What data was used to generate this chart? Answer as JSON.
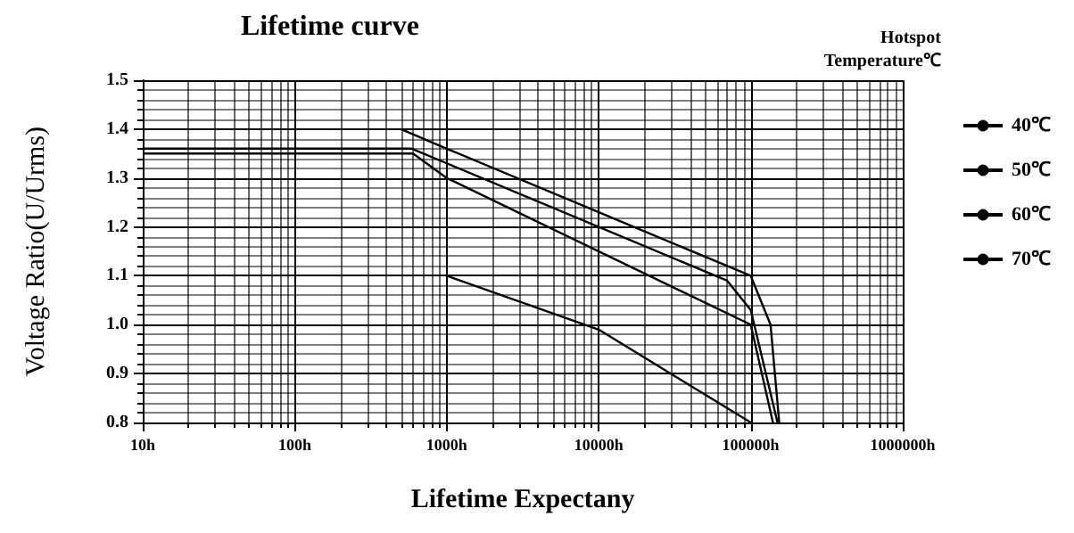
{
  "chart_data": {
    "type": "line",
    "title": "Lifetime curve",
    "xlabel": "Lifetime Expectany",
    "ylabel": "Voltage Ratio(U/Urms)",
    "legend_title": "Hotspot Temperature℃",
    "log": "x",
    "grid": true,
    "legend": "right",
    "marker": "none",
    "line_style": "solid",
    "xlim": [
      10,
      1000000
    ],
    "xticks": [
      {
        "value": 10,
        "label": "10h"
      },
      {
        "value": 100,
        "label": "100h"
      },
      {
        "value": 1000,
        "label": "1000h"
      },
      {
        "value": 10000,
        "label": "10000h"
      },
      {
        "value": 100000,
        "label": "100000h"
      },
      {
        "value": 1000000,
        "label": "1000000h"
      }
    ],
    "ylim": [
      0.8,
      1.5
    ],
    "yticks": [
      0.8,
      0.9,
      {
        "value": 1,
        "label": "1.0"
      },
      1.1,
      1.2,
      1.3,
      1.4,
      1.5
    ],
    "series": [
      {
        "name": "40℃",
        "color": "#000000",
        "x": [
          500,
          1000,
          100000,
          135000,
          154000
        ],
        "values": [
          1.4,
          1.36,
          1.1,
          1.0,
          0.8
        ]
      },
      {
        "name": "50℃",
        "color": "#000000",
        "x": [
          10,
          590,
          1000,
          70000,
          100000,
          150000
        ],
        "values": [
          1.36,
          1.36,
          1.33,
          1.09,
          1.03,
          0.8
        ]
      },
      {
        "name": "60℃",
        "color": "#000000",
        "x": [
          10,
          600,
          1000,
          100000,
          140000
        ],
        "values": [
          1.35,
          1.35,
          1.3,
          1.0,
          0.8
        ]
      },
      {
        "name": "70℃",
        "color": "#000000",
        "x": [
          1000,
          10000,
          100000
        ],
        "values": [
          1.1,
          0.99,
          0.8
        ]
      }
    ]
  }
}
